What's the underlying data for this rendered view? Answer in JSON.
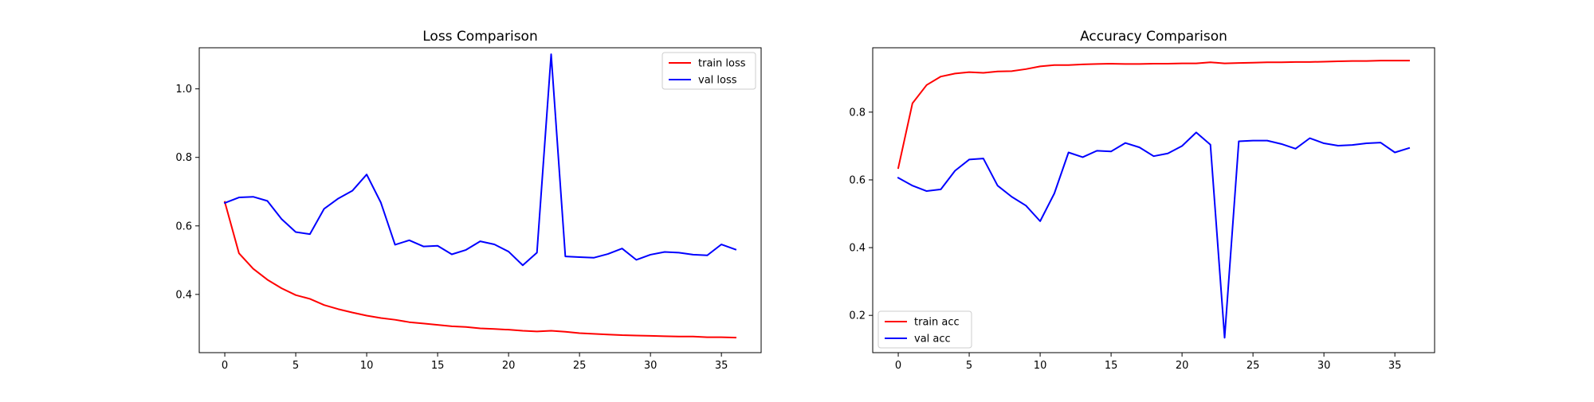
{
  "chart_data": [
    {
      "type": "line",
      "title": "Loss Comparison",
      "xlabel": "",
      "ylabel": "",
      "xlim": [
        -1.8,
        37.8
      ],
      "ylim": [
        0.23,
        1.12
      ],
      "xticks": [
        0,
        5,
        10,
        15,
        20,
        25,
        30,
        35
      ],
      "yticks": [
        0.4,
        0.6,
        0.8,
        1.0
      ],
      "ytick_labels": [
        "0.4",
        "0.6",
        "0.8",
        "1.0"
      ],
      "grid": false,
      "legend_position": "top-right",
      "x": [
        0,
        1,
        2,
        3,
        4,
        5,
        6,
        7,
        8,
        9,
        10,
        11,
        12,
        13,
        14,
        15,
        16,
        17,
        18,
        19,
        20,
        21,
        22,
        23,
        24,
        25,
        26,
        27,
        28,
        29,
        30,
        31,
        32,
        33,
        34,
        35,
        36
      ],
      "series": [
        {
          "name": "train loss",
          "color": "#ff0000",
          "values": [
            0.67,
            0.52,
            0.475,
            0.443,
            0.418,
            0.398,
            0.387,
            0.369,
            0.357,
            0.347,
            0.338,
            0.331,
            0.326,
            0.319,
            0.315,
            0.311,
            0.307,
            0.305,
            0.301,
            0.299,
            0.297,
            0.294,
            0.292,
            0.294,
            0.291,
            0.287,
            0.285,
            0.283,
            0.281,
            0.28,
            0.279,
            0.278,
            0.277,
            0.277,
            0.275,
            0.275,
            0.274
          ]
        },
        {
          "name": "val loss",
          "color": "#0000ff",
          "values": [
            0.667,
            0.683,
            0.685,
            0.673,
            0.62,
            0.582,
            0.576,
            0.65,
            0.68,
            0.703,
            0.75,
            0.668,
            0.545,
            0.558,
            0.54,
            0.542,
            0.517,
            0.53,
            0.555,
            0.546,
            0.525,
            0.485,
            0.522,
            1.101,
            0.511,
            0.509,
            0.507,
            0.518,
            0.534,
            0.501,
            0.516,
            0.524,
            0.522,
            0.516,
            0.514,
            0.546,
            0.531
          ]
        }
      ]
    },
    {
      "type": "line",
      "title": "Accuracy Comparison",
      "xlabel": "",
      "ylabel": "",
      "xlim": [
        -1.8,
        37.8
      ],
      "ylim": [
        0.09,
        0.99
      ],
      "xticks": [
        0,
        5,
        10,
        15,
        20,
        25,
        30,
        35
      ],
      "yticks": [
        0.2,
        0.4,
        0.6,
        0.8
      ],
      "ytick_labels": [
        "0.2",
        "0.4",
        "0.6",
        "0.8"
      ],
      "grid": false,
      "legend_position": "bottom-left",
      "x": [
        0,
        1,
        2,
        3,
        4,
        5,
        6,
        7,
        8,
        9,
        10,
        11,
        12,
        13,
        14,
        15,
        16,
        17,
        18,
        19,
        20,
        21,
        22,
        23,
        24,
        25,
        26,
        27,
        28,
        29,
        30,
        31,
        32,
        33,
        34,
        35,
        36
      ],
      "series": [
        {
          "name": "train acc",
          "color": "#ff0000",
          "values": [
            0.635,
            0.826,
            0.88,
            0.905,
            0.914,
            0.918,
            0.916,
            0.92,
            0.921,
            0.927,
            0.935,
            0.939,
            0.939,
            0.941,
            0.942,
            0.943,
            0.942,
            0.942,
            0.943,
            0.943,
            0.944,
            0.944,
            0.947,
            0.944,
            0.945,
            0.946,
            0.947,
            0.947,
            0.948,
            0.948,
            0.949,
            0.95,
            0.951,
            0.951,
            0.952,
            0.952,
            0.952
          ]
        },
        {
          "name": "val acc",
          "color": "#0000ff",
          "values": [
            0.606,
            0.583,
            0.567,
            0.572,
            0.627,
            0.66,
            0.663,
            0.583,
            0.55,
            0.524,
            0.478,
            0.56,
            0.681,
            0.667,
            0.686,
            0.684,
            0.709,
            0.696,
            0.67,
            0.678,
            0.7,
            0.74,
            0.704,
            0.134,
            0.714,
            0.716,
            0.716,
            0.706,
            0.692,
            0.723,
            0.708,
            0.701,
            0.703,
            0.708,
            0.71,
            0.681,
            0.694
          ]
        }
      ]
    }
  ]
}
